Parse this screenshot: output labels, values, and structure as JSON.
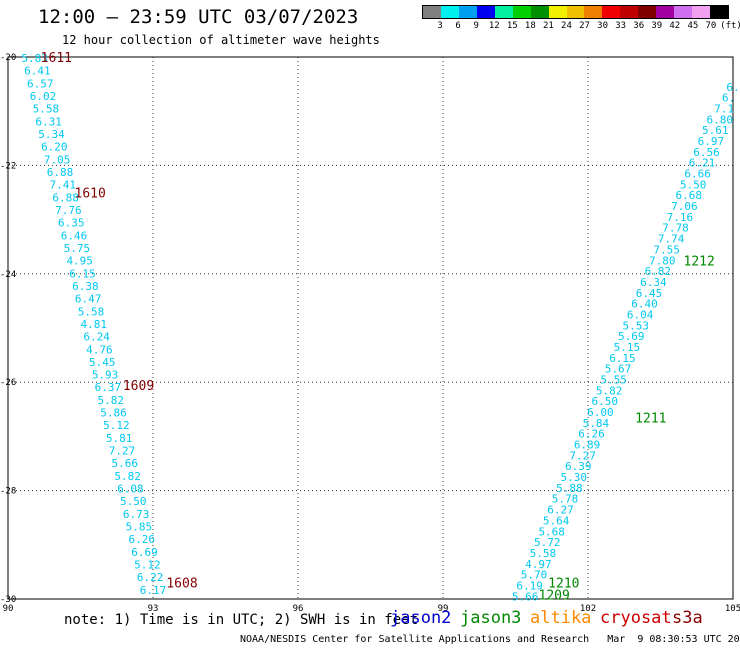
{
  "title": "12:00 — 23:59 UTC 03/07/2023",
  "subtitle": "12 hour collection of altimeter wave heights",
  "colorbar": {
    "colors": [
      "#808080",
      "#00f0f0",
      "#00a0f0",
      "#0000f0",
      "#00f0a0",
      "#00d000",
      "#009000",
      "#f0f000",
      "#f0c000",
      "#f08000",
      "#f00000",
      "#c00000",
      "#800000",
      "#a000a0",
      "#d070f0",
      "#f0a0f0",
      "#000000"
    ],
    "labels": [
      "3",
      "6",
      "9",
      "12",
      "15",
      "18",
      "21",
      "24",
      "27",
      "30",
      "33",
      "36",
      "39",
      "42",
      "45",
      "70"
    ],
    "unit": "(ft)"
  },
  "note": "note: 1) Time is in UTC; 2) SWH is in feet",
  "satellites": [
    {
      "name": "jason2",
      "color": "#0000cc"
    },
    {
      "name": "jason3",
      "color": "#008800"
    },
    {
      "name": "altika",
      "color": "#ff8800"
    },
    {
      "name": "cryosat",
      "color": "#cc0000"
    },
    {
      "name": "s3a",
      "color": "#880000"
    }
  ],
  "footer": "NOAA/NESDIS Center for Satellite Applications and Research   Mar  9 08:30:53 UTC 2023",
  "chart_data": {
    "type": "scatter",
    "xlim": [
      90,
      105
    ],
    "ylim": [
      -30,
      -20
    ],
    "xticks": [
      90,
      93,
      96,
      99,
      102,
      105
    ],
    "yticks": [
      -20,
      -22,
      -24,
      -26,
      -28,
      -30
    ],
    "xtick_labels": [
      "90",
      "93",
      "96",
      "99",
      "102",
      "105"
    ],
    "ytick_labels": [
      "-20",
      "-22",
      "-24",
      "-26",
      "-28",
      "-30"
    ],
    "grid": true,
    "label_color": "#00c8f0",
    "tracks": [
      {
        "x_start": 90.55,
        "y_start": -20.02,
        "x_end": 93.0,
        "y_end": -29.83,
        "values": [
          "5.83",
          "6.41",
          "6.57",
          "6.02",
          "5.58",
          "6.31",
          "5.34",
          "6.20",
          "7.05",
          "6.88",
          "7.41",
          "6.88",
          "7.76",
          "6.35",
          "6.46",
          "5.75",
          "4.95",
          "6.15",
          "6.38",
          "6.47",
          "5.58",
          "4.81",
          "6.24",
          "4.76",
          "5.45",
          "5.93",
          "6.37",
          "5.82",
          "5.86",
          "5.12",
          "5.81",
          "7.27",
          "5.66",
          "5.82",
          "6.08",
          "5.50",
          "6.73",
          "5.85",
          "6.26",
          "6.69",
          "5.12",
          "6.22",
          "6.17"
        ]
      },
      {
        "x_start": 100.7,
        "y_start": -29.95,
        "x_end": 105.0,
        "y_end": -20.55,
        "values": [
          "5.66",
          "6.19",
          "5.70",
          "4.97",
          "5.58",
          "5.72",
          "5.68",
          "5.64",
          "6.27",
          "5.78",
          "5.88",
          "5.30",
          "6.39",
          "7.27",
          "6.89",
          "6.26",
          "5.84",
          "6.00",
          "6.50",
          "5.82",
          "5.55",
          "5.67",
          "6.15",
          "5.15",
          "5.69",
          "5.53",
          "6.04",
          "6.40",
          "6.45",
          "6.34",
          "6.82",
          "7.80",
          "7.55",
          "7.74",
          "7.78",
          "7.16",
          "7.06",
          "6.68",
          "5.50",
          "6.66",
          "6.21",
          "6.56",
          "6.97",
          "5.61",
          "6.80",
          "7.1",
          "6.",
          "6."
        ]
      }
    ],
    "pass_labels": [
      {
        "text": "1611",
        "x": 91.0,
        "y": -20.0,
        "color": "#800000"
      },
      {
        "text": "1610",
        "x": 91.7,
        "y": -22.5,
        "color": "#800000"
      },
      {
        "text": "1609",
        "x": 92.7,
        "y": -26.05,
        "color": "#800000"
      },
      {
        "text": "1608",
        "x": 93.6,
        "y": -29.7,
        "color": "#800000"
      },
      {
        "text": "1212",
        "x": 104.3,
        "y": -23.75,
        "color": "#008800"
      },
      {
        "text": "1211",
        "x": 103.3,
        "y": -26.65,
        "color": "#008800"
      },
      {
        "text": "1210",
        "x": 101.5,
        "y": -29.7,
        "color": "#008800"
      },
      {
        "text": "1209",
        "x": 101.3,
        "y": -29.92,
        "color": "#008800"
      }
    ]
  }
}
